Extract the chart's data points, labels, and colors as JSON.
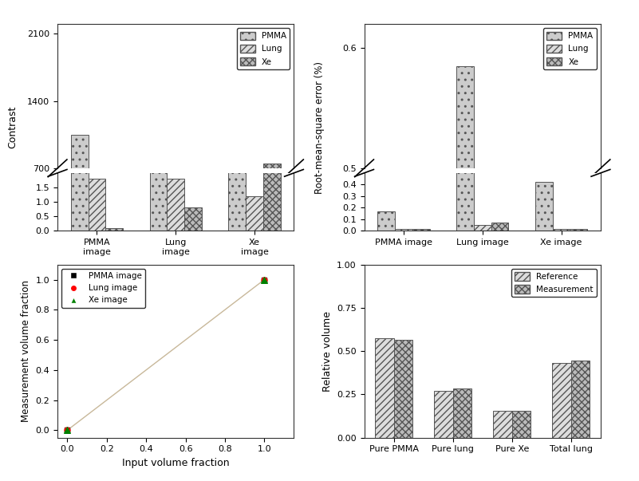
{
  "contrast": {
    "groups": [
      "PMMA\nimage",
      "Lung\nimage",
      "Xe\nimage"
    ],
    "pmma": [
      1050,
      450,
      620
    ],
    "lung": [
      1.8,
      1.8,
      1.2
    ],
    "xe": [
      0.1,
      0.8,
      750
    ],
    "ylabel": "Contrast",
    "legend_labels": [
      "PMMA",
      "Lung",
      "Xe"
    ],
    "upper_ylim": [
      700,
      2200
    ],
    "lower_ylim": [
      0,
      2.0
    ],
    "upper_yticks": [
      700,
      1400,
      2100
    ],
    "lower_yticks": [
      0,
      0.5,
      1.0,
      1.5
    ]
  },
  "rmse": {
    "groups": [
      "PMMA image",
      "Lung image",
      "Xe image"
    ],
    "pmma": [
      0.17,
      0.585,
      0.42
    ],
    "lung": [
      0.015,
      0.05,
      0.015
    ],
    "xe": [
      0.015,
      0.075,
      0.015
    ],
    "ylabel": "Root-mean-square error (%)",
    "legend_labels": [
      "PMMA",
      "Lung",
      "Xe"
    ],
    "upper_ylim": [
      0.5,
      0.62
    ],
    "lower_ylim": [
      0.0,
      0.5
    ],
    "upper_yticks": [
      0.5,
      0.6
    ],
    "lower_yticks": [
      0.0,
      0.1,
      0.2,
      0.3,
      0.4
    ]
  },
  "scatter": {
    "x": [
      0,
      1
    ],
    "y": [
      0,
      1
    ],
    "xlabel": "Input volume fraction",
    "ylabel": "Measurement volume fraction",
    "legend_labels": [
      "PMMA image",
      "Lung image",
      "Xe image"
    ],
    "marker_colors": [
      "black",
      "red",
      "green"
    ],
    "marker_shapes": [
      "s",
      "o",
      "^"
    ],
    "line_color": "#c8b89a",
    "xlim": [
      -0.05,
      1.15
    ],
    "ylim": [
      -0.05,
      1.1
    ],
    "xticks": [
      0.0,
      0.2,
      0.4,
      0.6,
      0.8,
      1.0
    ],
    "yticks": [
      0.0,
      0.2,
      0.4,
      0.6,
      0.8,
      1.0
    ]
  },
  "volume": {
    "categories": [
      "Pure PMMA",
      "Pure lung",
      "Pure Xe",
      "Total lung"
    ],
    "reference": [
      0.575,
      0.27,
      0.155,
      0.43
    ],
    "measurement": [
      0.565,
      0.285,
      0.155,
      0.445
    ],
    "ylabel": "Relative volume",
    "legend_labels": [
      "Reference",
      "Measurement"
    ],
    "ylim": [
      0.0,
      1.0
    ],
    "yticks": [
      0.0,
      0.25,
      0.5,
      0.75,
      1.0
    ]
  },
  "background_color": "#ffffff",
  "bar_edge_color": "#555555",
  "fc_pmma": "#cccccc",
  "fc_lung": "#dddddd",
  "fc_xe": "#bbbbbb",
  "hatch_pmma": "..",
  "hatch_lung": "////",
  "hatch_xe": "xxxx"
}
